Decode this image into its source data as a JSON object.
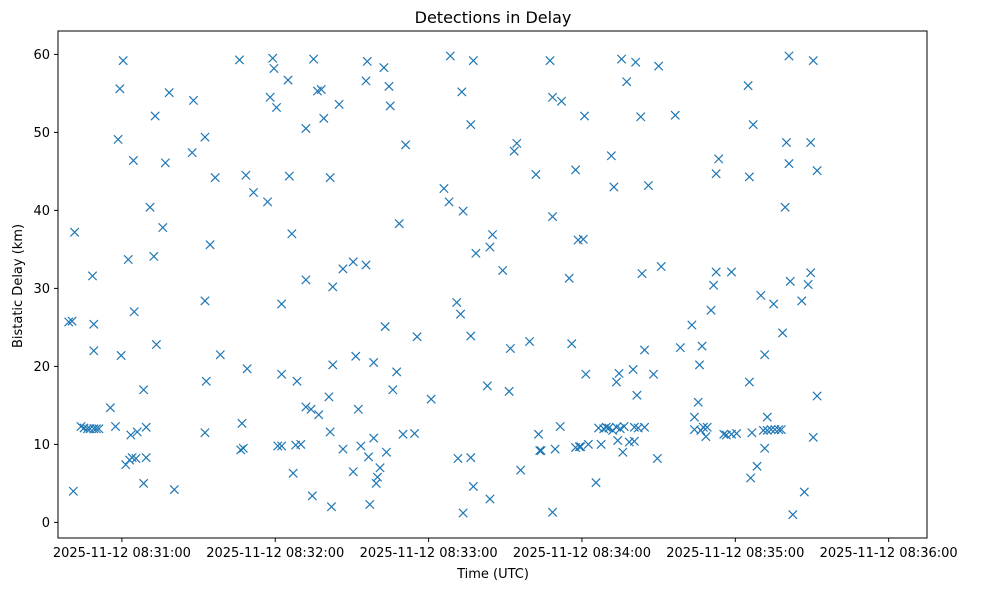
{
  "chart_data": {
    "type": "scatter",
    "title": "Detections in Delay",
    "xlabel": "Time (UTC)",
    "ylabel": "Bistatic Delay (km)",
    "marker": "x",
    "color": "#1f77b4",
    "grid": false,
    "legend": "none",
    "xlim_seconds": [
      -25,
      315
    ],
    "ylim": [
      -2,
      63
    ],
    "x_tick_labels": [
      "2025-11-12 08:31:00",
      "2025-11-12 08:32:00",
      "2025-11-12 08:33:00",
      "2025-11-12 08:34:00",
      "2025-11-12 08:35:00",
      "2025-11-12 08:36:00"
    ],
    "x_tick_seconds": [
      0,
      60,
      120,
      180,
      240,
      300
    ],
    "y_ticks": [
      0,
      10,
      20,
      30,
      40,
      50,
      60
    ],
    "x_base": "2025-11-12 08:31:00",
    "points": [
      [
        -20.8,
        25.7
      ],
      [
        -19.5,
        25.8
      ],
      [
        -18.5,
        37.2
      ],
      [
        -19.0,
        4.0
      ],
      [
        -16.0,
        12.3
      ],
      [
        -14.8,
        12.1
      ],
      [
        -13.5,
        12.0
      ],
      [
        -12.5,
        12.0
      ],
      [
        -11.0,
        12.0
      ],
      [
        -10.0,
        12.0
      ],
      [
        -9.0,
        12.0
      ],
      [
        -11.5,
        31.6
      ],
      [
        -11.0,
        25.4
      ],
      [
        -11.0,
        22.0
      ],
      [
        -4.5,
        14.7
      ],
      [
        -2.5,
        12.3
      ],
      [
        -1.5,
        49.1
      ],
      [
        -0.8,
        55.6
      ],
      [
        -0.3,
        21.4
      ],
      [
        0.5,
        59.2
      ],
      [
        1.5,
        7.4
      ],
      [
        2.5,
        33.7
      ],
      [
        3.0,
        8.0
      ],
      [
        3.5,
        11.2
      ],
      [
        4.0,
        8.3
      ],
      [
        4.5,
        46.4
      ],
      [
        4.8,
        27.0
      ],
      [
        5.5,
        8.2
      ],
      [
        6.0,
        11.6
      ],
      [
        8.5,
        17.0
      ],
      [
        8.5,
        5.0
      ],
      [
        9.5,
        12.2
      ],
      [
        9.5,
        8.3
      ],
      [
        11.0,
        40.4
      ],
      [
        12.5,
        34.1
      ],
      [
        13.0,
        52.1
      ],
      [
        13.5,
        22.8
      ],
      [
        16.0,
        37.8
      ],
      [
        17.0,
        46.1
      ],
      [
        18.5,
        55.1
      ],
      [
        20.5,
        4.2
      ],
      [
        27.5,
        47.4
      ],
      [
        28.0,
        54.1
      ],
      [
        32.5,
        49.4
      ],
      [
        32.5,
        28.4
      ],
      [
        32.5,
        11.5
      ],
      [
        33.0,
        18.1
      ],
      [
        34.5,
        35.6
      ],
      [
        36.5,
        44.2
      ],
      [
        38.5,
        21.5
      ],
      [
        46.0,
        59.3
      ],
      [
        46.5,
        9.3
      ],
      [
        47.0,
        12.7
      ],
      [
        47.5,
        9.5
      ],
      [
        48.5,
        44.5
      ],
      [
        49.0,
        19.7
      ],
      [
        51.5,
        42.3
      ],
      [
        57.0,
        41.1
      ],
      [
        58.0,
        54.5
      ],
      [
        59.0,
        59.5
      ],
      [
        59.5,
        58.2
      ],
      [
        60.5,
        53.2
      ],
      [
        61.0,
        9.8
      ],
      [
        62.5,
        9.8
      ],
      [
        62.5,
        19.0
      ],
      [
        62.5,
        28.0
      ],
      [
        65.0,
        56.7
      ],
      [
        65.5,
        44.4
      ],
      [
        66.5,
        37.0
      ],
      [
        67.0,
        6.3
      ],
      [
        68.0,
        9.9
      ],
      [
        68.5,
        18.1
      ],
      [
        70.0,
        10.0
      ],
      [
        72.0,
        50.5
      ],
      [
        72.0,
        31.1
      ],
      [
        72.0,
        14.8
      ],
      [
        74.0,
        14.5
      ],
      [
        74.5,
        3.4
      ],
      [
        75.0,
        59.4
      ],
      [
        76.5,
        55.3
      ],
      [
        77.0,
        13.8
      ],
      [
        78.0,
        55.5
      ],
      [
        79.0,
        51.8
      ],
      [
        81.0,
        16.1
      ],
      [
        81.5,
        44.2
      ],
      [
        81.5,
        11.6
      ],
      [
        82.5,
        30.2
      ],
      [
        82.5,
        20.2
      ],
      [
        82.0,
        2.0
      ],
      [
        85.0,
        53.6
      ],
      [
        86.5,
        32.5
      ],
      [
        86.5,
        9.4
      ],
      [
        90.5,
        6.5
      ],
      [
        90.5,
        33.4
      ],
      [
        91.5,
        21.3
      ],
      [
        92.5,
        14.5
      ],
      [
        93.5,
        9.8
      ],
      [
        95.5,
        33.0
      ],
      [
        95.5,
        56.6
      ],
      [
        96.0,
        59.1
      ],
      [
        96.5,
        8.4
      ],
      [
        97.0,
        2.3
      ],
      [
        98.5,
        10.8
      ],
      [
        98.5,
        20.5
      ],
      [
        99.5,
        5.0
      ],
      [
        100.0,
        5.8
      ],
      [
        101.0,
        7.0
      ],
      [
        102.5,
        58.3
      ],
      [
        103.0,
        25.1
      ],
      [
        103.5,
        9.0
      ],
      [
        104.5,
        55.9
      ],
      [
        105.0,
        53.4
      ],
      [
        106.0,
        17.0
      ],
      [
        107.5,
        19.3
      ],
      [
        108.5,
        38.3
      ],
      [
        110.0,
        11.3
      ],
      [
        111.0,
        48.4
      ],
      [
        114.5,
        11.4
      ],
      [
        115.5,
        23.8
      ],
      [
        121.0,
        15.8
      ],
      [
        126.0,
        42.8
      ],
      [
        128.0,
        41.1
      ],
      [
        128.5,
        59.8
      ],
      [
        131.0,
        28.2
      ],
      [
        131.5,
        8.2
      ],
      [
        132.5,
        26.7
      ],
      [
        133.0,
        55.2
      ],
      [
        133.5,
        39.9
      ],
      [
        133.5,
        1.2
      ],
      [
        136.5,
        23.9
      ],
      [
        136.5,
        8.3
      ],
      [
        136.5,
        51.0
      ],
      [
        137.5,
        59.2
      ],
      [
        137.5,
        4.6
      ],
      [
        138.5,
        34.5
      ],
      [
        143.0,
        17.5
      ],
      [
        144.0,
        3.0
      ],
      [
        144.0,
        35.3
      ],
      [
        145.0,
        36.9
      ],
      [
        149.0,
        32.3
      ],
      [
        151.5,
        16.8
      ],
      [
        152.0,
        22.3
      ],
      [
        153.5,
        47.6
      ],
      [
        154.5,
        48.6
      ],
      [
        156.0,
        6.7
      ],
      [
        159.5,
        23.2
      ],
      [
        162.0,
        44.6
      ],
      [
        163.0,
        11.3
      ],
      [
        163.5,
        9.2
      ],
      [
        164.0,
        9.2
      ],
      [
        167.5,
        59.2
      ],
      [
        168.5,
        54.5
      ],
      [
        168.5,
        39.2
      ],
      [
        168.5,
        1.3
      ],
      [
        169.5,
        9.4
      ],
      [
        171.5,
        12.3
      ],
      [
        172.0,
        54.0
      ],
      [
        175.0,
        31.3
      ],
      [
        176.0,
        22.9
      ],
      [
        177.5,
        45.2
      ],
      [
        177.5,
        9.6
      ],
      [
        178.5,
        36.2
      ],
      [
        179.0,
        9.7
      ],
      [
        179.5,
        9.7
      ],
      [
        180.5,
        36.3
      ],
      [
        181.0,
        52.1
      ],
      [
        181.5,
        19.0
      ],
      [
        182.5,
        10.0
      ],
      [
        185.5,
        5.1
      ],
      [
        186.5,
        12.1
      ],
      [
        187.5,
        10.0
      ],
      [
        188.5,
        12.0
      ],
      [
        189.5,
        12.2
      ],
      [
        190.5,
        12.1
      ],
      [
        191.5,
        47.0
      ],
      [
        192.0,
        11.8
      ],
      [
        192.5,
        43.0
      ],
      [
        193.5,
        12.2
      ],
      [
        193.5,
        18.0
      ],
      [
        194.0,
        10.5
      ],
      [
        194.5,
        19.1
      ],
      [
        195.0,
        12.0
      ],
      [
        195.5,
        59.4
      ],
      [
        196.0,
        9.0
      ],
      [
        196.5,
        12.3
      ],
      [
        197.5,
        56.5
      ],
      [
        198.5,
        10.3
      ],
      [
        200.0,
        19.6
      ],
      [
        200.5,
        10.4
      ],
      [
        200.5,
        12.2
      ],
      [
        201.0,
        59.0
      ],
      [
        201.5,
        16.3
      ],
      [
        202.0,
        12.1
      ],
      [
        203.0,
        52.0
      ],
      [
        203.5,
        31.9
      ],
      [
        204.5,
        12.2
      ],
      [
        204.5,
        22.1
      ],
      [
        206.0,
        43.2
      ],
      [
        208.0,
        19.0
      ],
      [
        209.5,
        8.2
      ],
      [
        210.0,
        58.5
      ],
      [
        211.0,
        32.8
      ],
      [
        216.5,
        52.2
      ],
      [
        218.5,
        22.4
      ],
      [
        223.0,
        25.3
      ],
      [
        224.0,
        11.9
      ],
      [
        224.0,
        13.5
      ],
      [
        225.5,
        15.4
      ],
      [
        226.0,
        20.2
      ],
      [
        226.5,
        11.8
      ],
      [
        227.0,
        22.6
      ],
      [
        227.5,
        12.2
      ],
      [
        228.5,
        11.0
      ],
      [
        229.0,
        12.2
      ],
      [
        230.5,
        27.2
      ],
      [
        231.5,
        30.4
      ],
      [
        232.5,
        44.7
      ],
      [
        232.5,
        32.1
      ],
      [
        233.5,
        46.6
      ],
      [
        235.5,
        11.3
      ],
      [
        236.5,
        11.2
      ],
      [
        238.5,
        32.1
      ],
      [
        238.5,
        11.3
      ],
      [
        240.5,
        11.4
      ],
      [
        245.0,
        56.0
      ],
      [
        245.5,
        44.3
      ],
      [
        245.5,
        18.0
      ],
      [
        246.0,
        5.7
      ],
      [
        246.5,
        11.5
      ],
      [
        247.0,
        51.0
      ],
      [
        248.5,
        7.2
      ],
      [
        250.0,
        29.1
      ],
      [
        251.0,
        11.8
      ],
      [
        251.5,
        21.5
      ],
      [
        251.5,
        9.5
      ],
      [
        252.5,
        13.5
      ],
      [
        252.5,
        11.8
      ],
      [
        254.0,
        11.9
      ],
      [
        255.0,
        28.0
      ],
      [
        255.5,
        11.9
      ],
      [
        257.0,
        11.9
      ],
      [
        258.0,
        11.9
      ],
      [
        258.5,
        24.3
      ],
      [
        259.5,
        40.4
      ],
      [
        260.0,
        48.7
      ],
      [
        261.0,
        46.0
      ],
      [
        261.0,
        59.8
      ],
      [
        261.5,
        30.9
      ],
      [
        262.5,
        1.0
      ],
      [
        266.0,
        28.4
      ],
      [
        267.0,
        3.9
      ],
      [
        268.5,
        30.5
      ],
      [
        269.5,
        32.0
      ],
      [
        269.5,
        48.7
      ],
      [
        270.5,
        59.2
      ],
      [
        270.5,
        10.9
      ],
      [
        272.0,
        45.1
      ],
      [
        272.0,
        16.2
      ]
    ]
  }
}
